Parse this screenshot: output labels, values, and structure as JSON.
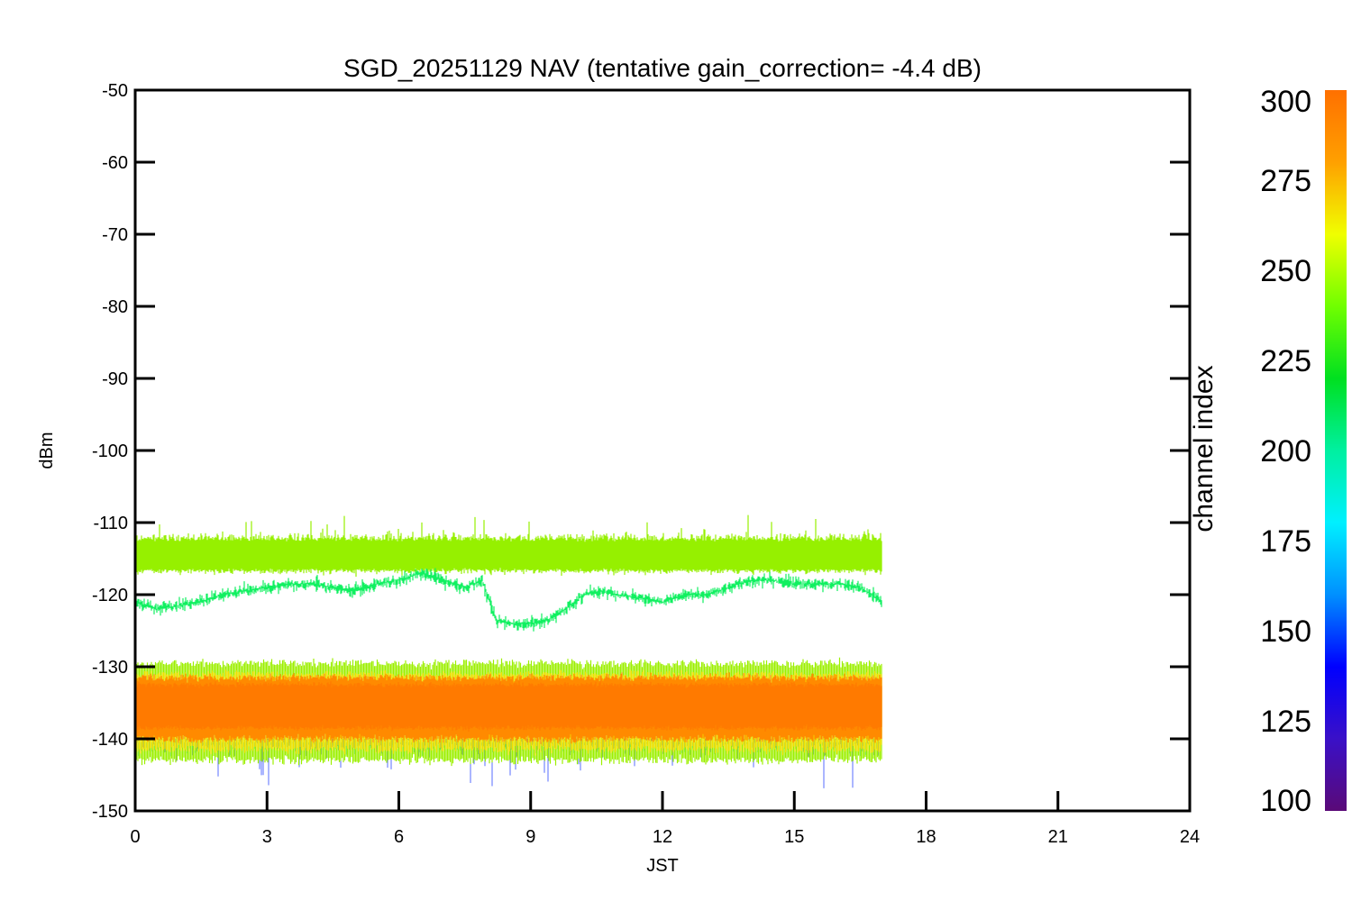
{
  "chart_data": {
    "type": "line",
    "title": "SGD_20251129 NAV (tentative gain_correction= -4.4 dB)",
    "xlabel": "JST",
    "ylabel": "dBm",
    "xlim": [
      0,
      24
    ],
    "ylim": [
      -150,
      -50
    ],
    "xticks": [
      "0",
      "3",
      "6",
      "9",
      "12",
      "15",
      "18",
      "21",
      "24"
    ],
    "yticks": [
      "-50",
      "-60",
      "-70",
      "-80",
      "-90",
      "-100",
      "-110",
      "-120",
      "-130",
      "-140",
      "-150"
    ],
    "grid": false,
    "data_extent_x": [
      0,
      17
    ],
    "series": [
      {
        "color": "#96f000",
        "mean_dbm": -115,
        "spread_dbm": 2.5,
        "x": [
          0,
          17
        ],
        "y": [
          -115,
          -115
        ]
      },
      {
        "color": "#10f060",
        "x": [
          0,
          0.5,
          1.0,
          1.5,
          2.0,
          2.5,
          3.0,
          3.5,
          4.0,
          4.5,
          5.0,
          5.5,
          6.0,
          6.5,
          7.0,
          7.5,
          7.9,
          8.2,
          8.6,
          9.0,
          9.4,
          9.8,
          10.2,
          10.6,
          11.0,
          11.5,
          12.0,
          12.5,
          13.0,
          13.5,
          14.0,
          14.5,
          15.0,
          15.5,
          16.0,
          16.5,
          17.0
        ],
        "y": [
          -121,
          -122,
          -121.5,
          -121,
          -120,
          -119.5,
          -119,
          -118.5,
          -118.5,
          -119,
          -119.5,
          -118.5,
          -118,
          -117,
          -118,
          -119,
          -118,
          -123.5,
          -124,
          -124,
          -123.5,
          -122,
          -120,
          -119.5,
          -120,
          -120.5,
          -121,
          -120,
          -120,
          -119,
          -118,
          -118,
          -118.5,
          -118.5,
          -118.5,
          -119,
          -121
        ]
      },
      {
        "color_scale": "channel index",
        "band_dbm": [
          -143,
          -130
        ],
        "center_dbm": -135,
        "x": [
          0,
          17
        ]
      }
    ],
    "colorbar": {
      "label": "channel index",
      "range": [
        100,
        300
      ],
      "ticks": [
        "100",
        "125",
        "150",
        "175",
        "200",
        "225",
        "250",
        "275",
        "300"
      ],
      "stops": [
        "#5a0a78",
        "#3a10c8",
        "#0000ff",
        "#0090ff",
        "#00f0ff",
        "#00f0a0",
        "#00e020",
        "#70ff00",
        "#f0ff00",
        "#ffa000",
        "#ff7000"
      ]
    }
  }
}
